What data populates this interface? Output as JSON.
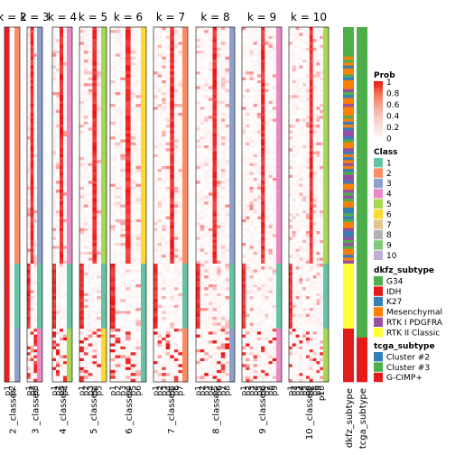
{
  "chart_data": {
    "type": "heatmap",
    "title": "",
    "panels": [
      {
        "label": "k = 2",
        "column_labels": [
          "p1",
          "p2"
        ],
        "bottom_label": "2 _classes"
      },
      {
        "label": "k = 3",
        "column_labels": [
          "p1",
          "p2",
          "p3"
        ],
        "bottom_label": "3 _classes"
      },
      {
        "label": "k = 4",
        "column_labels": [
          "p1",
          "p2",
          "p3",
          "p4"
        ],
        "bottom_label": "4 _classes"
      },
      {
        "label": "k = 5",
        "column_labels": [
          "p1",
          "p2",
          "p3",
          "p4",
          "p5"
        ],
        "bottom_label": "5 _classes"
      },
      {
        "label": "k = 6",
        "column_labels": [
          "p1",
          "p2",
          "p3",
          "p4",
          "p5",
          "p6"
        ],
        "bottom_label": "6 _classes"
      },
      {
        "label": "k = 7",
        "column_labels": [
          "p1",
          "p2",
          "p3",
          "p4",
          "p5",
          "p6",
          "p7"
        ],
        "bottom_label": "7 _classes"
      },
      {
        "label": "k = 8",
        "column_labels": [
          "p1",
          "p2",
          "p3",
          "p4",
          "p5",
          "p6",
          "p7",
          "p8"
        ],
        "bottom_label": "8 _classes"
      },
      {
        "label": "k = 9",
        "column_labels": [
          "p1",
          "p2",
          "p3",
          "p4",
          "p5",
          "p6",
          "p7",
          "p8",
          "p9"
        ],
        "bottom_label": "9 _classes"
      },
      {
        "label": "k = 10",
        "column_labels": [
          "p1",
          "p2",
          "p3",
          "p4",
          "p5",
          "p6",
          "p7",
          "p8",
          "p9",
          "p10"
        ],
        "bottom_label": "10 _classes"
      }
    ],
    "annotation_columns": [
      "dkfz_subtype",
      "tcga_subtype"
    ],
    "legends": {
      "prob": {
        "title": "Prob",
        "ticks": [
          "1",
          "0.8",
          "0.6",
          "0.4",
          "0.2",
          "0"
        ],
        "colors": [
          "#EE1111",
          "#F07050",
          "#F3A48E",
          "#F5C9BE",
          "#FAE6E1",
          "#FFFFFF"
        ]
      },
      "class": {
        "title": "Class",
        "items": [
          {
            "label": "1",
            "color": "#66C2A5"
          },
          {
            "label": "2",
            "color": "#FC8D62"
          },
          {
            "label": "3",
            "color": "#8DA0CB"
          },
          {
            "label": "4",
            "color": "#E78AC3"
          },
          {
            "label": "5",
            "color": "#A6D854"
          },
          {
            "label": "6",
            "color": "#FFD92F"
          },
          {
            "label": "7",
            "color": "#E5C494"
          },
          {
            "label": "8",
            "color": "#B3B3B3"
          },
          {
            "label": "9",
            "color": "#7FC97F"
          },
          {
            "label": "10",
            "color": "#BEAED4"
          }
        ]
      },
      "dkfz_subtype": {
        "title": "dkfz_subtype",
        "items": [
          {
            "label": "G34",
            "color": "#4DAF4A"
          },
          {
            "label": "IDH",
            "color": "#E41A1C"
          },
          {
            "label": "K27",
            "color": "#377EB8"
          },
          {
            "label": "Mesenchymal",
            "color": "#FF7F00"
          },
          {
            "label": "RTK I PDGFRA",
            "color": "#984EA3"
          },
          {
            "label": "RTK II Classic",
            "color": "#FFFF33"
          }
        ]
      },
      "tcga_subtype": {
        "title": "tcga_subtype",
        "items": [
          {
            "label": "Cluster #2",
            "color": "#377EB8"
          },
          {
            "label": "Cluster #3",
            "color": "#4DAF4A"
          },
          {
            "label": "G-CIMP+",
            "color": "#E41A1C"
          }
        ]
      }
    }
  }
}
